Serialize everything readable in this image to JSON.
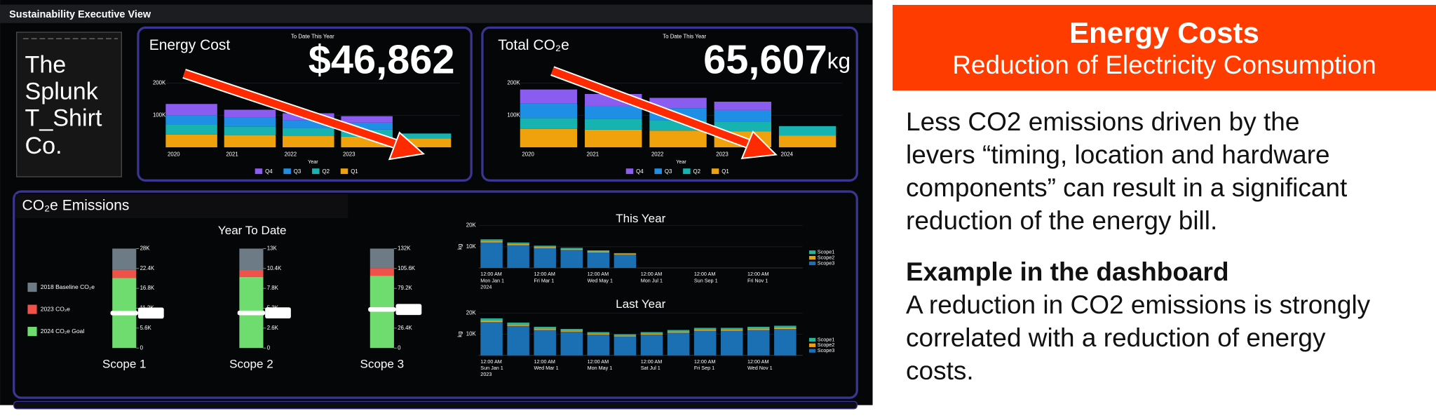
{
  "dashboard": {
    "title": "Sustainability Executive View",
    "logo": [
      "The",
      "Splunk",
      "T_Shirt",
      "Co."
    ],
    "energy_cost": {
      "title": "Energy Cost",
      "subtitle": "To Date This Year",
      "value": "$46,862",
      "chart": {
        "type": "bar",
        "stacked": true,
        "x_label": "Year",
        "categories": [
          "2020",
          "2021",
          "2022",
          "2023",
          "2024"
        ],
        "ylim": [
          0,
          215000
        ],
        "yticks": [
          {
            "value": 100000,
            "label": "100K"
          },
          {
            "value": 200000,
            "label": "200K"
          }
        ],
        "series": [
          {
            "name": "Q1",
            "color": "#f0a20c",
            "values": [
              40000,
              38000,
              35000,
              33000,
              28000
            ]
          },
          {
            "name": "Q2",
            "color": "#16b3b0",
            "values": [
              30000,
              27000,
              25000,
              22000,
              15000
            ]
          },
          {
            "name": "Q3",
            "color": "#1f8fe6",
            "values": [
              30000,
              27000,
              25000,
              22000,
              null
            ]
          },
          {
            "name": "Q4",
            "color": "#8b5cf0",
            "values": [
              35000,
              25000,
              21000,
              20000,
              null
            ]
          }
        ]
      }
    },
    "total_co2e": {
      "title": "Total CO₂e",
      "subtitle": "To Date This Year",
      "value": "65,607",
      "unit": "kg",
      "chart": {
        "type": "bar",
        "stacked": true,
        "x_label": "Year",
        "categories": [
          "2020",
          "2021",
          "2022",
          "2023",
          "2024"
        ],
        "ylim": [
          0,
          215000
        ],
        "yticks": [
          {
            "value": 100000,
            "label": "100K"
          },
          {
            "value": 200000,
            "label": "200K"
          }
        ],
        "series": [
          {
            "name": "Q1",
            "color": "#f0a20c",
            "values": [
              57000,
              55000,
              52000,
              50000,
              37000
            ]
          },
          {
            "name": "Q2",
            "color": "#16b3b0",
            "values": [
              34000,
              34000,
              32000,
              30000,
              29000
            ]
          },
          {
            "name": "Q3",
            "color": "#1f8fe6",
            "values": [
              46000,
              40000,
              38000,
              36000,
              null
            ]
          },
          {
            "name": "Q4",
            "color": "#8b5cf0",
            "values": [
              43000,
              37000,
              32000,
              26000,
              null
            ]
          }
        ]
      }
    },
    "emissions": {
      "title": "CO₂e Emissions",
      "ytd_title": "Year To Date",
      "legend": [
        {
          "name": "2018 Baseline CO₂e",
          "color": "#6d7b86"
        },
        {
          "name": "2023 CO₂e",
          "color": "#f0524a"
        },
        {
          "name": "2024 CO₂e Goal",
          "color": "#6fdc6f"
        }
      ],
      "gauges": [
        {
          "label": "Scope 1",
          "ylim": [
            0,
            28000
          ],
          "yticks": [
            0,
            {
              "value": 5600,
              "label": "5.6K"
            },
            {
              "value": 11200,
              "label": "11.2K"
            },
            {
              "value": 16800,
              "label": "16.8K"
            },
            {
              "value": 22400,
              "label": "22.4K"
            },
            {
              "value": 28000,
              "label": "28K"
            }
          ],
          "baseline": 28000,
          "previous": 22000,
          "goal": 19700,
          "current": 9840,
          "current_label": "9.84K"
        },
        {
          "label": "Scope 2",
          "ylim": [
            0,
            13000
          ],
          "yticks": [
            0,
            {
              "value": 2600,
              "label": "2.6K"
            },
            {
              "value": 5200,
              "label": "5.2K"
            },
            {
              "value": 7800,
              "label": "7.8K"
            },
            {
              "value": 10400,
              "label": "10.4K"
            },
            {
              "value": 13000,
              "label": "13K"
            }
          ],
          "baseline": 13000,
          "previous": 10200,
          "goal": 9300,
          "current": 4590,
          "current_label": "4.59K"
        },
        {
          "label": "Scope 3",
          "ylim": [
            0,
            132000
          ],
          "yticks": [
            0,
            {
              "value": 26400,
              "label": "26.4K"
            },
            {
              "value": 52800,
              "label": "52.8K"
            },
            {
              "value": 79200,
              "label": "79.2K"
            },
            {
              "value": 105600,
              "label": "105.6K"
            },
            {
              "value": 132000,
              "label": "132K"
            }
          ],
          "baseline": 132000,
          "previous": 106000,
          "goal": 96000,
          "current": 51170,
          "current_label": "51.17K"
        }
      ],
      "timelines": [
        {
          "type": "bar",
          "title": "This Year",
          "y_label": "kg",
          "ylim": [
            0,
            20000
          ],
          "yticks": [
            {
              "value": 10000,
              "label": "10K"
            },
            {
              "value": 20000,
              "label": "20K"
            }
          ],
          "categories": [
            [
              "12:00 AM",
              "Mon Jan 1",
              "2024"
            ],
            null,
            [
              "12:00 AM",
              "Fri Mar 1"
            ],
            null,
            [
              "12:00 AM",
              "Wed May 1"
            ],
            null,
            [
              "12:00 AM",
              "Mon Jul 1"
            ],
            null,
            [
              "12:00 AM",
              "Sun Sep 1"
            ],
            null,
            [
              "12:00 AM",
              "Fri Nov 1"
            ],
            null
          ],
          "series": [
            {
              "name": "Scope3",
              "color": "#1b6fb3",
              "values": [
                12000,
                10700,
                9300,
                8500,
                7300,
                6200,
                null,
                null,
                null,
                null,
                null,
                null
              ]
            },
            {
              "name": "Scope2",
              "color": "#e8a21a",
              "values": [
                700,
                600,
                600,
                500,
                500,
                400,
                null,
                null,
                null,
                null,
                null,
                null
              ]
            },
            {
              "name": "Scope1",
              "color": "#2bb39a",
              "values": [
                800,
                700,
                600,
                500,
                500,
                400,
                null,
                null,
                null,
                null,
                null,
                null
              ]
            }
          ]
        },
        {
          "type": "bar",
          "title": "Last Year",
          "y_label": "kg",
          "ylim": [
            0,
            20000
          ],
          "yticks": [
            {
              "value": 10000,
              "label": "10K"
            },
            {
              "value": 20000,
              "label": "20K"
            }
          ],
          "categories": [
            [
              "12:00 AM",
              "Sun Jan 1",
              "2023"
            ],
            null,
            [
              "12:00 AM",
              "Wed Mar 1"
            ],
            null,
            [
              "12:00 AM",
              "Mon May 1"
            ],
            null,
            [
              "12:00 AM",
              "Sat Jul 1"
            ],
            null,
            [
              "12:00 AM",
              "Fri Sep 1"
            ],
            null,
            [
              "12:00 AM",
              "Wed Nov 1"
            ],
            null
          ],
          "series": [
            {
              "name": "Scope3",
              "color": "#1b6fb3",
              "values": [
                15700,
                13900,
                12000,
                11200,
                9800,
                8900,
                9800,
                10700,
                11600,
                11600,
                12000,
                12500
              ]
            },
            {
              "name": "Scope2",
              "color": "#e8a21a",
              "values": [
                800,
                700,
                700,
                600,
                500,
                500,
                500,
                600,
                600,
                600,
                700,
                700
              ]
            },
            {
              "name": "Scope1",
              "color": "#2bb39a",
              "values": [
                1000,
                900,
                800,
                700,
                700,
                600,
                700,
                700,
                800,
                800,
                800,
                800
              ]
            }
          ]
        }
      ]
    }
  },
  "slide": {
    "heading": "Energy Costs",
    "subheading": "Reduction of Electricity Consumption",
    "body_lines": [
      "Less CO2 emissions driven by the",
      "levers “timing, location and hardware",
      "components” can result in a significant",
      "reduction of the energy bill."
    ],
    "example_heading": "Example in the dashboard",
    "example_lines": [
      "A reduction in CO2 emissions is strongly",
      "correlated with a reduction of energy",
      "costs."
    ]
  }
}
